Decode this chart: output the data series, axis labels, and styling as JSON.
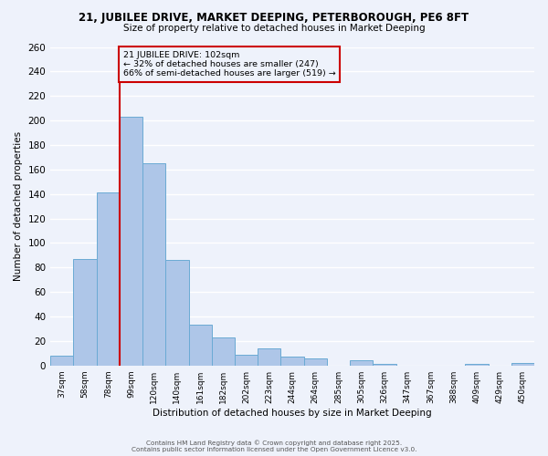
{
  "title": "21, JUBILEE DRIVE, MARKET DEEPING, PETERBOROUGH, PE6 8FT",
  "subtitle": "Size of property relative to detached houses in Market Deeping",
  "xlabel": "Distribution of detached houses by size in Market Deeping",
  "ylabel": "Number of detached properties",
  "bin_labels": [
    "37sqm",
    "58sqm",
    "78sqm",
    "99sqm",
    "120sqm",
    "140sqm",
    "161sqm",
    "182sqm",
    "202sqm",
    "223sqm",
    "244sqm",
    "264sqm",
    "285sqm",
    "305sqm",
    "326sqm",
    "347sqm",
    "367sqm",
    "388sqm",
    "409sqm",
    "429sqm",
    "450sqm"
  ],
  "bar_values": [
    8,
    87,
    141,
    203,
    165,
    86,
    33,
    23,
    9,
    14,
    7,
    6,
    0,
    4,
    1,
    0,
    0,
    0,
    1,
    0,
    2
  ],
  "bar_color": "#aec6e8",
  "bar_edge_color": "#6aaad4",
  "background_color": "#eef2fb",
  "grid_color": "#ffffff",
  "vline_index": 3,
  "vline_color": "#cc0000",
  "annotation_text": "21 JUBILEE DRIVE: 102sqm\n← 32% of detached houses are smaller (247)\n66% of semi-detached houses are larger (519) →",
  "annotation_box_edge_color": "#cc0000",
  "ylim": [
    0,
    260
  ],
  "yticks": [
    0,
    20,
    40,
    60,
    80,
    100,
    120,
    140,
    160,
    180,
    200,
    220,
    240,
    260
  ],
  "footer1": "Contains HM Land Registry data © Crown copyright and database right 2025.",
  "footer2": "Contains public sector information licensed under the Open Government Licence v3.0."
}
